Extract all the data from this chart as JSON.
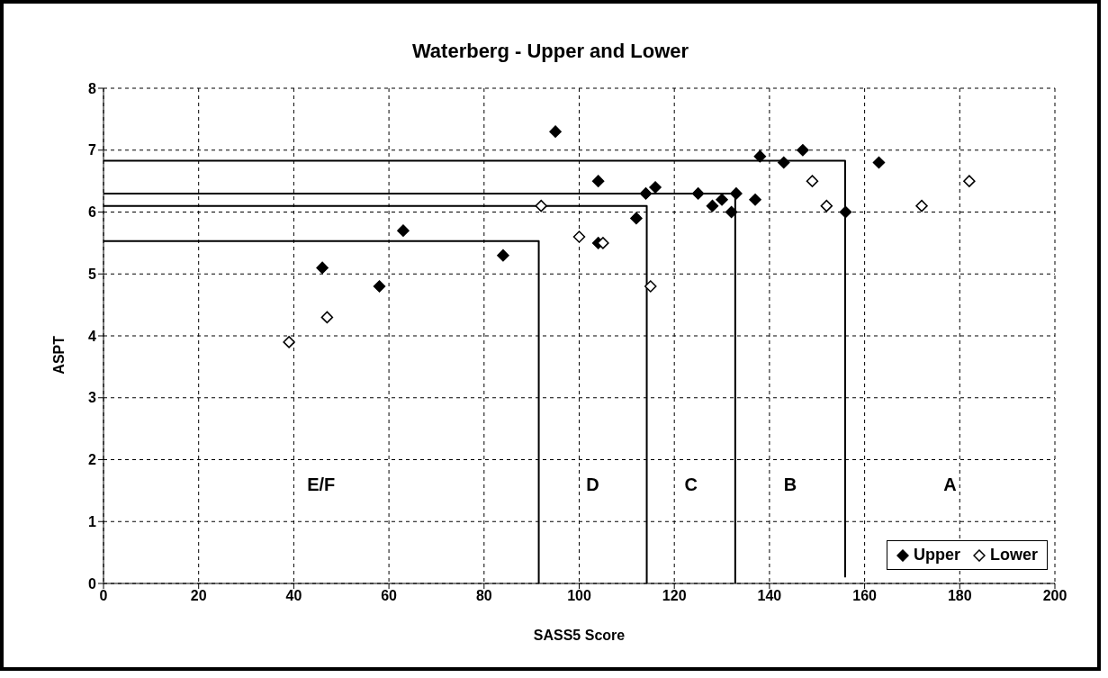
{
  "chart_data": {
    "type": "scatter",
    "title": "Waterberg - Upper and Lower",
    "xlabel": "SASS5 Score",
    "ylabel": "ASPT",
    "xlim": [
      0,
      200
    ],
    "ylim": [
      0,
      8
    ],
    "xticks": [
      0,
      20,
      40,
      60,
      80,
      100,
      120,
      140,
      160,
      180,
      200
    ],
    "yticks": [
      0,
      1,
      2,
      3,
      4,
      5,
      6,
      7,
      8
    ],
    "grid": true,
    "legend": "bottom right",
    "marker": "diamond",
    "series": [
      {
        "name": "Upper",
        "color": "#000000",
        "x": [
          46,
          58,
          63,
          84,
          95,
          104,
          104,
          112,
          114,
          116,
          125,
          128,
          130,
          132,
          133,
          137,
          138,
          143,
          147,
          156,
          163
        ],
        "values": [
          5.1,
          4.8,
          5.7,
          5.3,
          7.3,
          6.5,
          5.5,
          5.9,
          6.3,
          6.4,
          6.3,
          6.1,
          6.2,
          6.0,
          6.3,
          6.2,
          6.9,
          6.8,
          7.0,
          6.0,
          6.8
        ]
      },
      {
        "name": "Lower",
        "color": "#ffffff",
        "x": [
          39,
          47,
          92,
          100,
          105,
          115,
          149,
          152,
          172,
          182
        ],
        "values": [
          3.9,
          4.3,
          6.1,
          5.6,
          5.5,
          4.8,
          6.5,
          6.1,
          6.1,
          6.5
        ]
      },
      {
        "type": "line",
        "color": "#000000",
        "marker": "none",
        "x": [
          0,
          91.5,
          91.5
        ],
        "values": [
          5.53,
          5.53,
          0
        ]
      },
      {
        "type": "line",
        "color": "#000000",
        "marker": "none",
        "x": [
          0,
          114.2,
          114.2
        ],
        "values": [
          6.1,
          6.1,
          0
        ]
      },
      {
        "type": "line",
        "color": "#000000",
        "marker": "none",
        "x": [
          0,
          132.8,
          132.8
        ],
        "values": [
          6.3,
          6.3,
          0
        ]
      },
      {
        "type": "line",
        "color": "#000000",
        "marker": "none",
        "x": [
          0,
          155.9,
          155.9
        ],
        "values": [
          6.83,
          6.83,
          0.1
        ]
      }
    ],
    "annotations": [
      "E/F",
      "D",
      "C",
      "B",
      "A"
    ]
  }
}
